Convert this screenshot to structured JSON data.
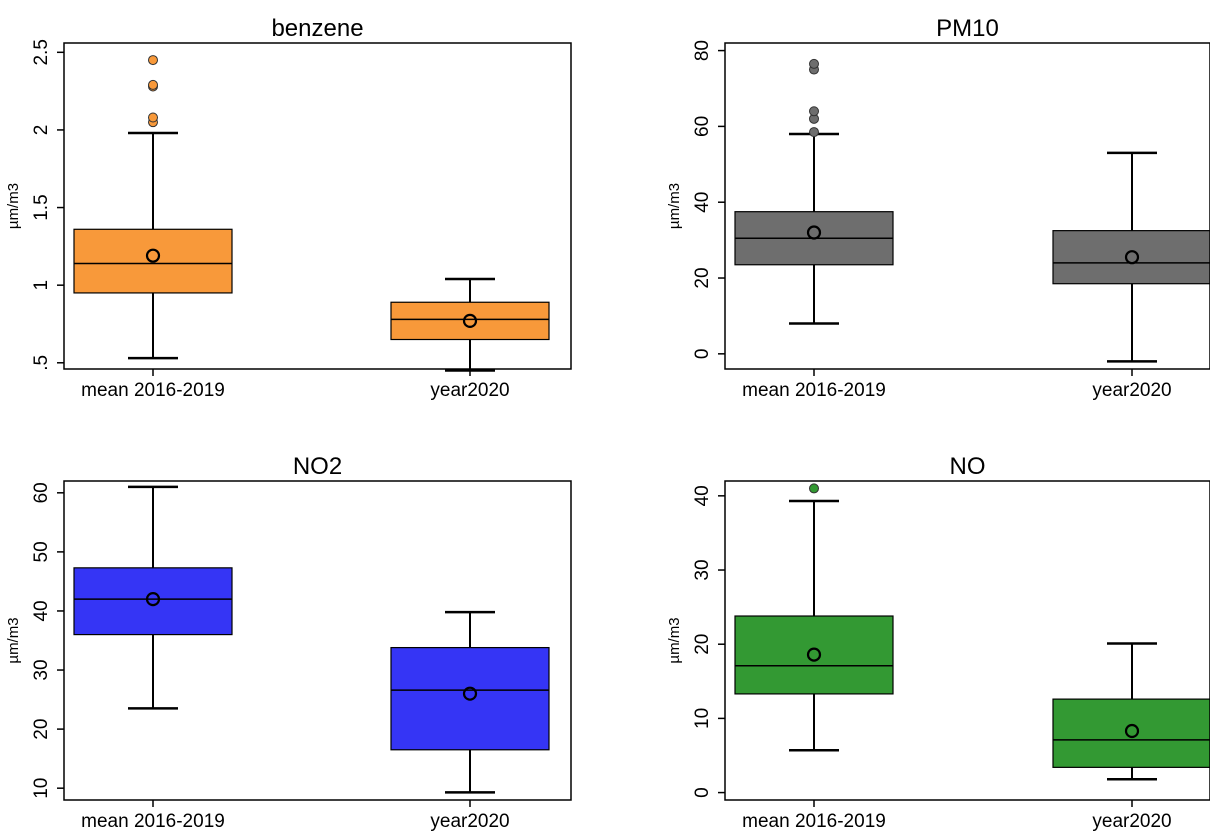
{
  "chart_data": [
    {
      "type": "box",
      "title": "benzene",
      "ylabel": "µm/m3",
      "categories": [
        "mean 2016-2019",
        "year2020"
      ],
      "yticks": [
        ".5",
        "1",
        "1.5",
        "2",
        "2.5"
      ],
      "ytick_values": [
        0.5,
        1,
        1.5,
        2,
        2.5
      ],
      "ylim": [
        0.46,
        2.56
      ],
      "color": "#F8993A",
      "boxes": [
        {
          "category": "mean 2016-2019",
          "whisker_low": 0.53,
          "q1": 0.95,
          "median": 1.14,
          "q3": 1.36,
          "whisker_high": 1.98,
          "mean": 1.19,
          "outliers": [
            2.05,
            2.08,
            2.28,
            2.29,
            2.45
          ]
        },
        {
          "category": "year2020",
          "whisker_low": 0.45,
          "q1": 0.65,
          "median": 0.78,
          "q3": 0.89,
          "whisker_high": 1.04,
          "mean": 0.77,
          "outliers": []
        }
      ]
    },
    {
      "type": "box",
      "title": "PM10",
      "ylabel": "µm/m3",
      "categories": [
        "mean 2016-2019",
        "year2020"
      ],
      "yticks": [
        "0",
        "20",
        "40",
        "60",
        "80"
      ],
      "ytick_values": [
        0,
        20,
        40,
        60,
        80
      ],
      "ylim": [
        -4,
        82
      ],
      "color": "#6E6E6E",
      "boxes": [
        {
          "category": "mean 2016-2019",
          "whisker_low": 8,
          "q1": 23.5,
          "median": 30.5,
          "q3": 37.5,
          "whisker_high": 58,
          "mean": 32,
          "outliers": [
            58.5,
            62,
            64,
            75,
            76.5
          ]
        },
        {
          "category": "year2020",
          "whisker_low": -2,
          "q1": 18.5,
          "median": 24,
          "q3": 32.5,
          "whisker_high": 53,
          "mean": 25.5,
          "outliers": []
        }
      ]
    },
    {
      "type": "box",
      "title": "NO2",
      "ylabel": "µm/m3",
      "categories": [
        "mean 2016-2019",
        "year2020"
      ],
      "yticks": [
        "10",
        "20",
        "30",
        "40",
        "50",
        "60"
      ],
      "ytick_values": [
        10,
        20,
        30,
        40,
        50,
        60
      ],
      "ylim": [
        8,
        62
      ],
      "color": "#3535F5",
      "boxes": [
        {
          "category": "mean 2016-2019",
          "whisker_low": 23.5,
          "q1": 36,
          "median": 42,
          "q3": 47.3,
          "whisker_high": 61,
          "mean": 42,
          "outliers": []
        },
        {
          "category": "year2020",
          "whisker_low": 9.3,
          "q1": 16.5,
          "median": 26.6,
          "q3": 33.8,
          "whisker_high": 39.8,
          "mean": 26,
          "outliers": []
        }
      ]
    },
    {
      "type": "box",
      "title": "NO",
      "ylabel": "µm/m3",
      "categories": [
        "mean 2016-2019",
        "year2020"
      ],
      "yticks": [
        "0",
        "10",
        "20",
        "30",
        "40"
      ],
      "ytick_values": [
        0,
        10,
        20,
        30,
        40
      ],
      "ylim": [
        -1,
        42
      ],
      "color": "#339933",
      "boxes": [
        {
          "category": "mean 2016-2019",
          "whisker_low": 5.7,
          "q1": 13.3,
          "median": 17.1,
          "q3": 23.8,
          "whisker_high": 39.3,
          "mean": 18.6,
          "outliers": [
            41
          ]
        },
        {
          "category": "year2020",
          "whisker_low": 1.8,
          "q1": 3.4,
          "median": 7.1,
          "q3": 12.6,
          "whisker_high": 20.1,
          "mean": 8.3,
          "outliers": []
        }
      ]
    }
  ]
}
